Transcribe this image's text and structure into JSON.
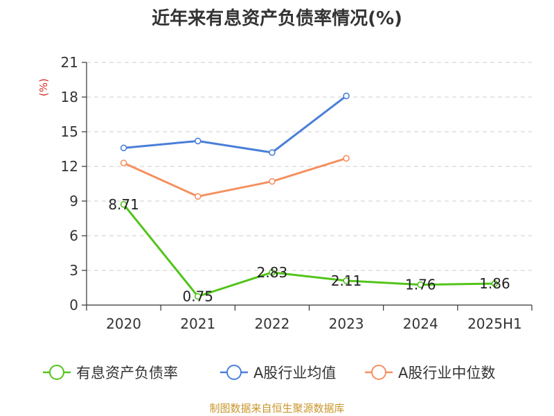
{
  "chart_data": {
    "type": "line",
    "title": "近年来有息资产负债率情况(%)",
    "ylabel": "(%)",
    "categories": [
      "2020",
      "2021",
      "2022",
      "2023",
      "2024",
      "2025H1"
    ],
    "ylim": [
      0,
      21
    ],
    "yticks": [
      0,
      3,
      6,
      9,
      12,
      15,
      18,
      21
    ],
    "grid": true,
    "legend_position": "bottom",
    "series": [
      {
        "name": "有息资产负债率",
        "color": "#52c41a",
        "values": [
          8.71,
          0.75,
          2.83,
          2.11,
          1.76,
          1.86
        ],
        "labels": [
          "8.71",
          "0.75",
          "2.83",
          "2.11",
          "1.76",
          "1.86"
        ]
      },
      {
        "name": "A股行业均值",
        "color": "#4a7fd8",
        "values": [
          13.6,
          14.2,
          13.2,
          18.1,
          null,
          null
        ]
      },
      {
        "name": "A股行业中位数",
        "color": "#f59060",
        "values": [
          12.3,
          9.4,
          10.7,
          12.7,
          null,
          null
        ]
      }
    ]
  },
  "source": "制图数据来自恒生聚源数据库"
}
